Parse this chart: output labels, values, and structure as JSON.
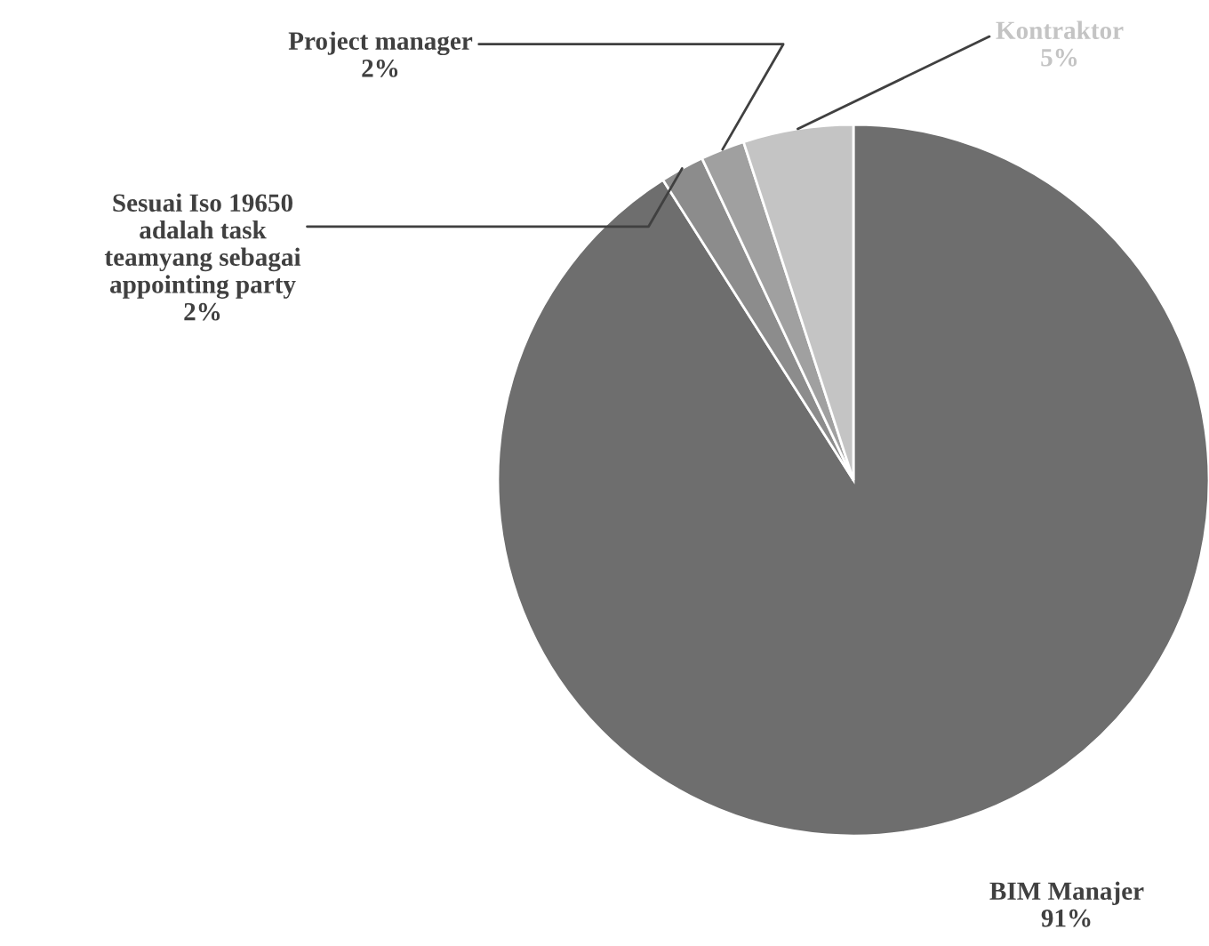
{
  "chart_data": {
    "type": "pie",
    "categories": [
      "BIM Manajer",
      "Sesuai Iso 19650\nadalah task\nteamyang sebagai\nappointing party",
      "Project manager",
      "Kontraktor"
    ],
    "values": [
      91,
      2,
      2,
      5
    ],
    "value_labels": [
      "91%",
      "2%",
      "2%",
      "5%"
    ],
    "colors": [
      "#6e6e6e",
      "#8c8c8c",
      "#a0a0a0",
      "#c4c4c4"
    ],
    "legend": false
  }
}
